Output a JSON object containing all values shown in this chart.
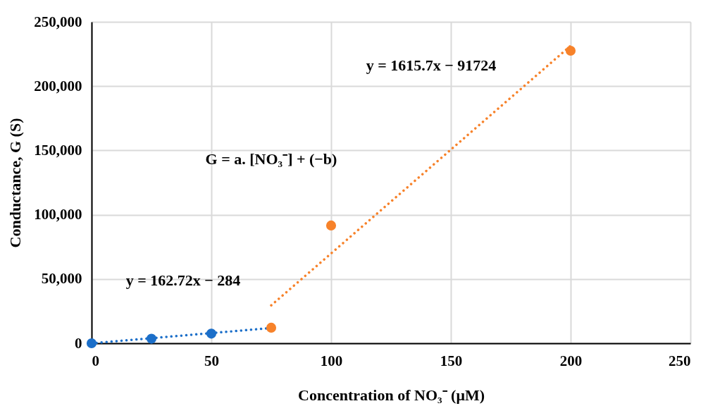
{
  "chart_data": {
    "type": "scatter",
    "xlabel": "Concentration of NO₃⁻ (μM)",
    "ylabel": "Conductance, G (S)",
    "xlim": [
      0,
      250
    ],
    "xticks": [
      0,
      50,
      100,
      150,
      200,
      250
    ],
    "ylim": [
      0,
      250000
    ],
    "yticks": [
      {
        "value": 0,
        "label": "0"
      },
      {
        "value": 50000,
        "label": "50,000"
      },
      {
        "value": 100000,
        "label": "100,000"
      },
      {
        "value": 150000,
        "label": "150,000"
      },
      {
        "value": 200000,
        "label": "200,000"
      },
      {
        "value": 250000,
        "label": "250,000"
      }
    ],
    "grid": true,
    "marker": "circle",
    "series": [
      {
        "type": "line",
        "color": "#1c6fc9",
        "x": [
          0,
          75
        ],
        "values": [
          0,
          11900
        ],
        "line_style": "dotted",
        "marker": "none"
      },
      {
        "type": "line",
        "color": "#f7822a",
        "x": [
          75,
          200
        ],
        "values": [
          29500,
          231400
        ],
        "line_style": "dotted",
        "marker": "none"
      },
      {
        "color": "#1c6fc9",
        "x": [
          0,
          25,
          50
        ],
        "values": [
          0,
          3500,
          7500
        ]
      },
      {
        "color": "#f7822a",
        "x": [
          75,
          100,
          200
        ],
        "values": [
          12100,
          91600,
          227500
        ]
      }
    ],
    "annotations": [
      "y = 162.72x − 284",
      "y = 1615.7x − 91724",
      "G = a. [NO₃⁻] + (−b)"
    ]
  }
}
